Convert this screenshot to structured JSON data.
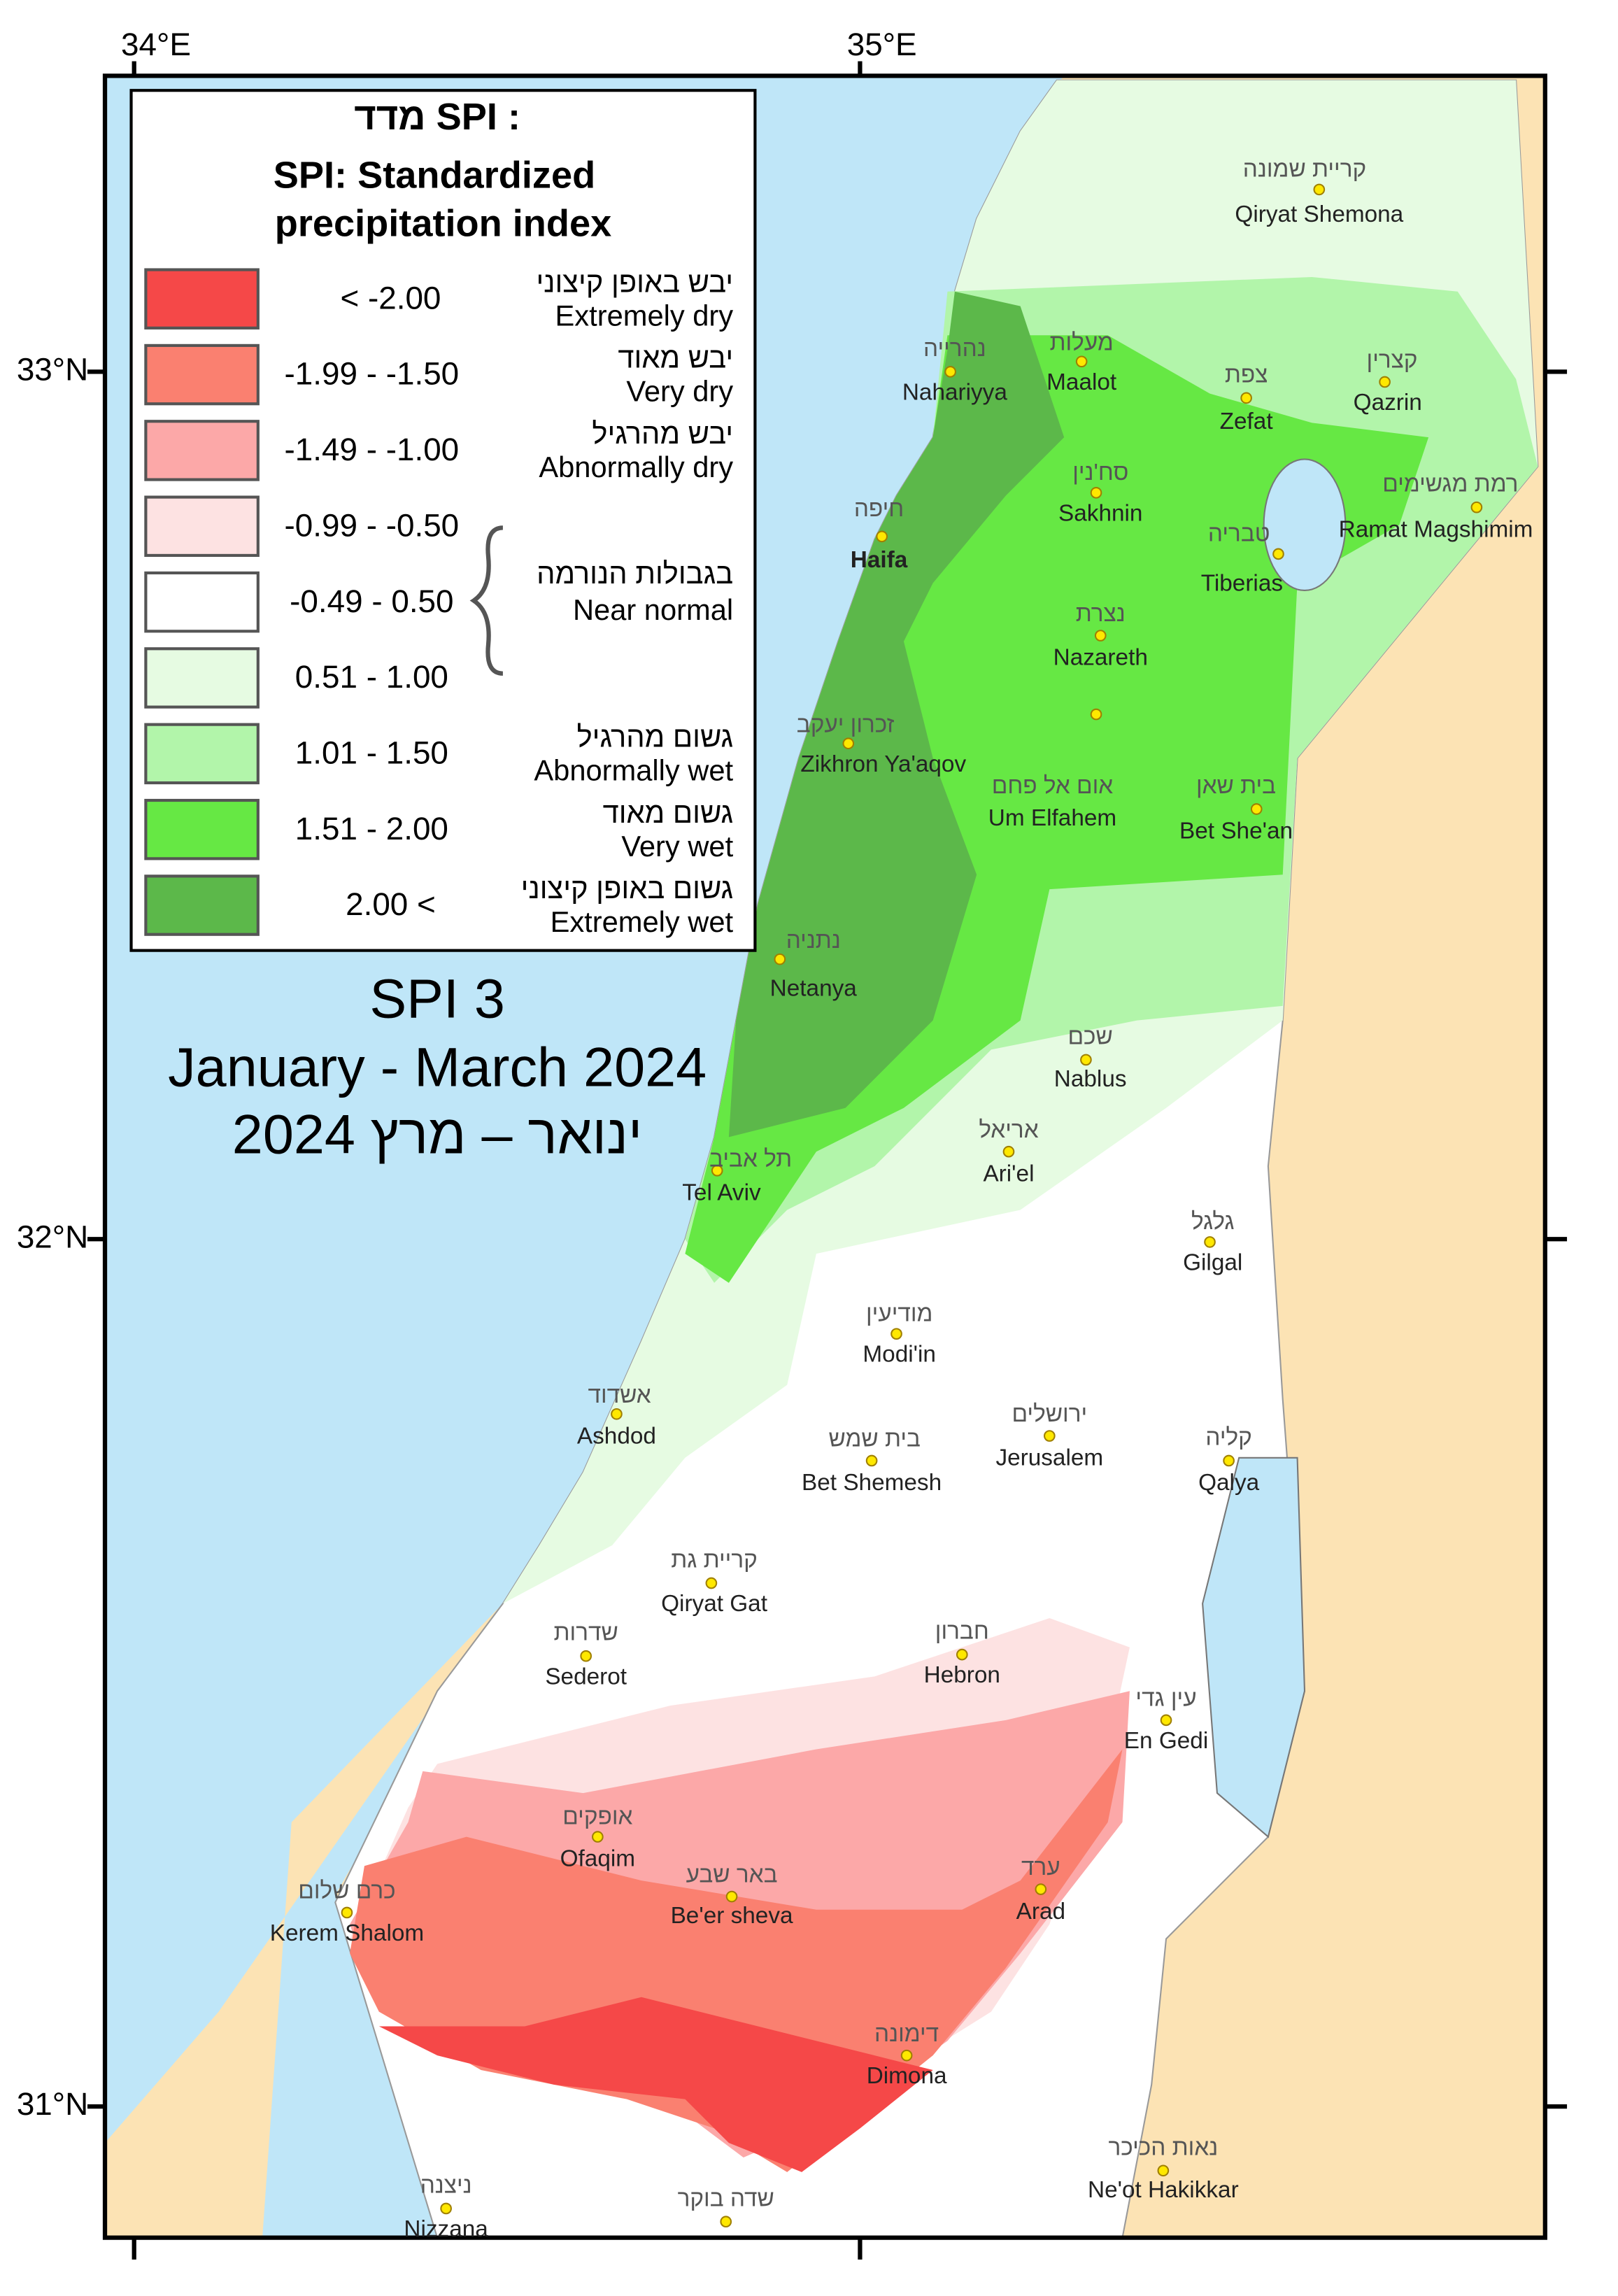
{
  "legend": {
    "title_he": "מדד SPI :",
    "title_lines": [
      "SPI: Standardized",
      "precipitation index"
    ],
    "classes": [
      {
        "range": "< -2.00",
        "he": "יבש באופן קיצוני",
        "en": "Extremely dry",
        "color": "#f54848"
      },
      {
        "range": "-1.99 - -1.50",
        "he": "יבש מאוד",
        "en": "Very dry",
        "color": "#fa8070"
      },
      {
        "range": "-1.49 - -1.00",
        "he": "יבש מהרגיל",
        "en": "Abnormally dry",
        "color": "#fca8a8"
      },
      {
        "range": "-0.99 - -0.50",
        "color": "#fde2e2"
      },
      {
        "range": "-0.49 - 0.50",
        "color": "#ffffff"
      },
      {
        "range": "0.51 - 1.00",
        "color": "#e6fbe2"
      },
      {
        "range": "1.01 - 1.50",
        "he": "גשום מהרגיל",
        "en": "Abnormally wet",
        "color": "#b2f5aa"
      },
      {
        "range": "1.51 - 2.00",
        "he": "גשום מאוד",
        "en": "Very wet",
        "color": "#66e844"
      },
      {
        "range": "2.00 <",
        "he": "גשום באופן קיצוני",
        "en": "Extremely wet",
        "color": "#5cb84a"
      }
    ],
    "near_normal": {
      "he": "בגבולות הנורמה",
      "en": "Near normal"
    }
  },
  "title": [
    "SPI 3",
    "January - March 2024",
    "ינואר – מרץ 2024"
  ],
  "axes": {
    "lon": [
      "34°E",
      "35°E"
    ],
    "lat": [
      "33°N",
      "32°N",
      "31°N"
    ]
  },
  "cities": [
    {
      "he": "קריית שמונה",
      "en": "Qiryat Shemona"
    },
    {
      "he": "נהרייה",
      "en": "Nahariyya"
    },
    {
      "he": "מעלות",
      "en": "Maalot"
    },
    {
      "he": "צפת",
      "en": "Zefat"
    },
    {
      "he": "קצרין",
      "en": "Qazrin"
    },
    {
      "he": "סח'נין",
      "en": "Sakhnin"
    },
    {
      "he": "רמת מגשימים",
      "en": "Ramat Magshimim"
    },
    {
      "he": "חיפה",
      "en": "Haifa"
    },
    {
      "he": "טבריה",
      "en": "Tiberias"
    },
    {
      "he": "נצרת",
      "en": "Nazareth"
    },
    {
      "he": "זכרון יעקב",
      "en": "Zikhron Ya'aqov"
    },
    {
      "he": "אום אל פחם",
      "en": "Um Elfahem"
    },
    {
      "he": "בית שאן",
      "en": "Bet She'an"
    },
    {
      "he": "נתניה",
      "en": "Netanya"
    },
    {
      "he": "שכם",
      "en": "Nablus"
    },
    {
      "he": "אריאל",
      "en": "Ari'el"
    },
    {
      "he": "תל אביב",
      "en": "Tel Aviv"
    },
    {
      "he": "גלגל",
      "en": "Gilgal"
    },
    {
      "he": "מודיעין",
      "en": "Modi'in"
    },
    {
      "he": "אשדוד",
      "en": "Ashdod"
    },
    {
      "he": "ירושלים",
      "en": "Jerusalem"
    },
    {
      "he": "בית שמש",
      "en": "Bet Shemesh"
    },
    {
      "he": "קליה",
      "en": "Qalya"
    },
    {
      "he": "קריית גת",
      "en": "Qiryat Gat"
    },
    {
      "he": "שדרות",
      "en": "Sederot"
    },
    {
      "he": "חברון",
      "en": "Hebron"
    },
    {
      "he": "עין גדי",
      "en": "En Gedi"
    },
    {
      "he": "אופקים",
      "en": "Ofaqim"
    },
    {
      "he": "באר שבע",
      "en": "Be'er sheva"
    },
    {
      "he": "ערד",
      "en": "Arad"
    },
    {
      "he": "כרם שלום",
      "en": "Kerem Shalom"
    },
    {
      "he": "דימונה",
      "en": "Dimona"
    },
    {
      "he": "נאות הכיכר",
      "en": "Ne'ot Hakikkar"
    },
    {
      "he": "ניצנה",
      "en": "Nizzana"
    },
    {
      "he": "שדה בוקר"
    }
  ]
}
